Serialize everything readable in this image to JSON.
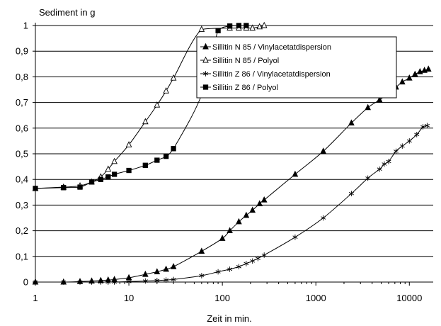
{
  "chart_data": {
    "type": "line",
    "ylabel": "Sediment in g",
    "xlabel": "Zeit in min.",
    "x_scale": "log",
    "xlim": [
      1,
      18000
    ],
    "ylim": [
      0,
      1
    ],
    "x_ticks": [
      1,
      10,
      100,
      1000,
      10000
    ],
    "x_tick_labels": [
      "1",
      "10",
      "100",
      "1000",
      "10000"
    ],
    "y_ticks": [
      0,
      0.1,
      0.2,
      0.3,
      0.4,
      0.5,
      0.6,
      0.7,
      0.8,
      0.9,
      1
    ],
    "y_tick_labels": [
      "0",
      "0,1",
      "0,2",
      "0,3",
      "0,4",
      "0,5",
      "0,6",
      "0,7",
      "0,8",
      "0,9",
      "1"
    ],
    "grid": "horizontal",
    "legend_position": "top-right",
    "series": [
      {
        "name": "Sillitin N 85 / Vinylacetatdispersion",
        "marker": "filled-triangle",
        "color": "#000000",
        "points": [
          [
            1,
            0
          ],
          [
            2,
            0
          ],
          [
            3,
            0.002
          ],
          [
            4,
            0.004
          ],
          [
            5,
            0.006
          ],
          [
            6,
            0.008
          ],
          [
            7,
            0.01
          ],
          [
            10,
            0.017
          ],
          [
            15,
            0.03
          ],
          [
            20,
            0.04
          ],
          [
            25,
            0.05
          ],
          [
            30,
            0.06
          ],
          [
            60,
            0.12
          ],
          [
            100,
            0.17
          ],
          [
            120,
            0.2
          ],
          [
            150,
            0.235
          ],
          [
            180,
            0.26
          ],
          [
            210,
            0.28
          ],
          [
            250,
            0.305
          ],
          [
            280,
            0.32
          ],
          [
            600,
            0.42
          ],
          [
            1200,
            0.51
          ],
          [
            2400,
            0.62
          ],
          [
            3600,
            0.68
          ],
          [
            4800,
            0.71
          ],
          [
            5700,
            0.73
          ],
          [
            6200,
            0.745
          ],
          [
            7200,
            0.76
          ],
          [
            8400,
            0.78
          ],
          [
            10000,
            0.795
          ],
          [
            11500,
            0.81
          ],
          [
            13000,
            0.82
          ],
          [
            14500,
            0.825
          ],
          [
            16000,
            0.83
          ]
        ]
      },
      {
        "name": "Sillitin N 85 / Polyol",
        "marker": "open-triangle",
        "color": "#000000",
        "points": [
          [
            1,
            0.365
          ],
          [
            2,
            0.37
          ],
          [
            3,
            0.375
          ],
          [
            4,
            0.39
          ],
          [
            5,
            0.41
          ],
          [
            6,
            0.44
          ],
          [
            7,
            0.47
          ],
          [
            10,
            0.535
          ],
          [
            15,
            0.625
          ],
          [
            20,
            0.69
          ],
          [
            25,
            0.745
          ],
          [
            30,
            0.795
          ],
          [
            60,
            0.985
          ],
          [
            120,
            0.99
          ],
          [
            150,
            0.99
          ],
          [
            180,
            0.99
          ],
          [
            210,
            0.99
          ],
          [
            250,
            0.995
          ],
          [
            280,
            1.0
          ]
        ]
      },
      {
        "name": "Sillitin Z 86 / Vinylacetatdispersion",
        "marker": "star",
        "color": "#000000",
        "points": [
          [
            1,
            0
          ],
          [
            2,
            0
          ],
          [
            3,
            0
          ],
          [
            4,
            0
          ],
          [
            5,
            0
          ],
          [
            6,
            0
          ],
          [
            7,
            0
          ],
          [
            10,
            0.002
          ],
          [
            15,
            0.004
          ],
          [
            20,
            0.006
          ],
          [
            25,
            0.008
          ],
          [
            30,
            0.01
          ],
          [
            60,
            0.025
          ],
          [
            90,
            0.04
          ],
          [
            120,
            0.05
          ],
          [
            150,
            0.06
          ],
          [
            180,
            0.072
          ],
          [
            210,
            0.082
          ],
          [
            240,
            0.092
          ],
          [
            280,
            0.105
          ],
          [
            600,
            0.175
          ],
          [
            1200,
            0.25
          ],
          [
            2400,
            0.345
          ],
          [
            3600,
            0.405
          ],
          [
            4800,
            0.44
          ],
          [
            5400,
            0.46
          ],
          [
            6000,
            0.47
          ],
          [
            7200,
            0.51
          ],
          [
            8400,
            0.53
          ],
          [
            10000,
            0.55
          ],
          [
            12000,
            0.575
          ],
          [
            14000,
            0.605
          ],
          [
            15500,
            0.61
          ]
        ]
      },
      {
        "name": "Sillitin Z 86 / Polyol",
        "marker": "filled-square",
        "color": "#000000",
        "points": [
          [
            1,
            0.365
          ],
          [
            2,
            0.368
          ],
          [
            3,
            0.37
          ],
          [
            4,
            0.39
          ],
          [
            5,
            0.4
          ],
          [
            6,
            0.41
          ],
          [
            7,
            0.42
          ],
          [
            10,
            0.435
          ],
          [
            15,
            0.455
          ],
          [
            20,
            0.475
          ],
          [
            25,
            0.49
          ],
          [
            30,
            0.52
          ],
          [
            60,
            0.73
          ],
          [
            90,
            0.98
          ],
          [
            120,
            0.998
          ],
          [
            150,
            1.0
          ],
          [
            180,
            1.0
          ]
        ]
      }
    ]
  }
}
